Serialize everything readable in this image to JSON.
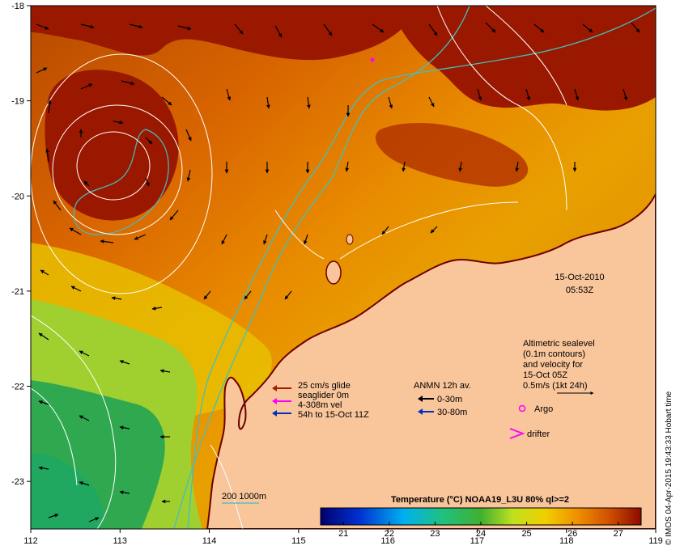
{
  "map": {
    "lon_range": [
      112,
      119
    ],
    "lat_range": [
      -23.5,
      -18
    ],
    "x_ticks": [
      112,
      113,
      114,
      115,
      116,
      117,
      118,
      119
    ],
    "y_ticks": [
      -18,
      -19,
      -20,
      -21,
      -22,
      -23
    ],
    "date": "15-Oct-2010",
    "time": "05:53Z",
    "credit": "© IMOS 04-Apr-2015 19:43:33 Hobart time"
  },
  "legend_glider": {
    "lines": [
      "25 cm/s glide",
      "seaglider 0m",
      "4-308m vel",
      "54h to 15-Oct 11Z"
    ],
    "colors": [
      "#a01e0a",
      "#ff00ff",
      "#0030c0"
    ]
  },
  "legend_anmn": {
    "title": "ANMN 12h av.",
    "items": [
      {
        "label": "0-30m",
        "color": "#000000"
      },
      {
        "label": "30-80m",
        "color": "#0030c0"
      }
    ]
  },
  "legend_altimetry": {
    "lines": [
      "Altimetric sealevel",
      "(0.1m contours)",
      "and velocity for",
      "15-Oct 05Z",
      "0.5m/s (1kt 24h)"
    ]
  },
  "legend_markers": {
    "argo": "Argo",
    "drifter": "drifter",
    "argo_color": "#ff00ff",
    "drifter_color": "#ff00ff"
  },
  "bathymetry_legend": {
    "label": "200  1000m",
    "color": "#40c0c0"
  },
  "colorbar": {
    "title": "Temperature (°C) NOAA19_L3U 80% ql>=2",
    "ticks": [
      21,
      22,
      23,
      24,
      25,
      26,
      27
    ],
    "range": [
      20.5,
      27.5
    ],
    "stops": [
      "#00006e",
      "#0030d0",
      "#00b0f0",
      "#20c080",
      "#40b030",
      "#c0e020",
      "#f0d000",
      "#f09000",
      "#d05000",
      "#8c0a00"
    ]
  },
  "colors": {
    "land": "#f9c59b",
    "contour": "#ffffff",
    "isobath": "#40c0c0"
  }
}
